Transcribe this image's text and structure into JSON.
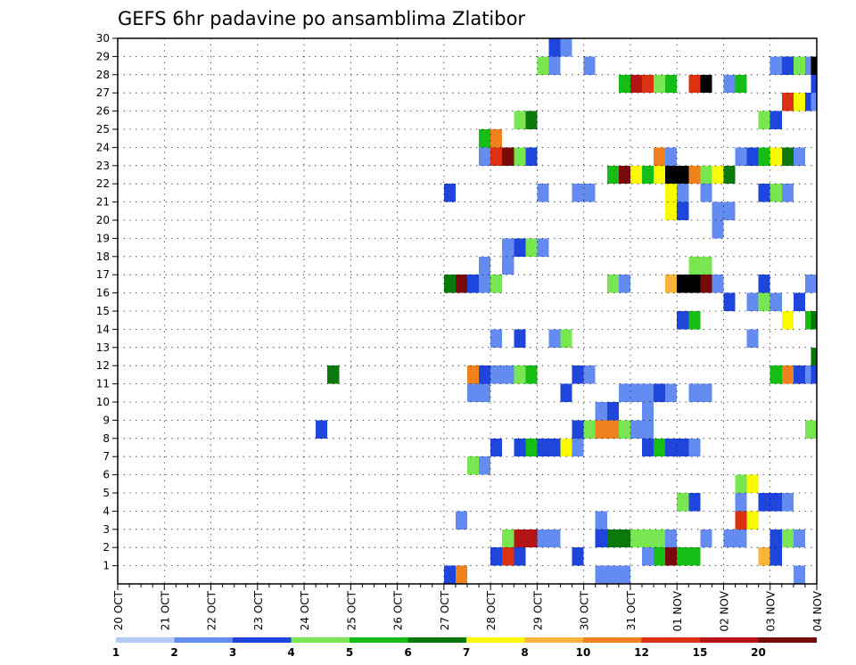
{
  "chart_data": {
    "type": "heatmap",
    "title": "GEFS 6hr padavine po ansamblima Zlatibor",
    "x_labels": [
      "20 OCT",
      "21 OCT",
      "22 OCT",
      "23 OCT",
      "24 OCT",
      "25 OCT",
      "26 OCT",
      "27 OCT",
      "28 OCT",
      "29 OCT",
      "30 OCT",
      "31 OCT",
      "01 NOV",
      "02 NOV",
      "03 NOV",
      "04 NOV"
    ],
    "y_labels": [
      "1",
      "2",
      "3",
      "4",
      "5",
      "6",
      "7",
      "8",
      "9",
      "10",
      "11",
      "12",
      "13",
      "14",
      "15",
      "16",
      "17",
      "18",
      "19",
      "20",
      "21",
      "22",
      "23",
      "24",
      "25",
      "26",
      "27",
      "28",
      "29",
      "30"
    ],
    "x_step_hours": 6,
    "steps_per_day": 4,
    "member_range": [
      0,
      30
    ],
    "grid": "dotted",
    "legend": {
      "position": "bottom",
      "labels": [
        "1",
        "2",
        "3",
        "4",
        "5",
        "6",
        "7",
        "8",
        "10",
        "12",
        "15",
        "20"
      ],
      "colors": [
        "#b4c8f5",
        "#648cf0",
        "#1e46dc",
        "#78e650",
        "#14be14",
        "#0a780a",
        "#fafa00",
        "#fab43c",
        "#f0821e",
        "#dc3214",
        "#b41414",
        "#780a0a"
      ]
    },
    "cells": [
      {
        "member": 0,
        "step": 28.5,
        "bin": 2
      },
      {
        "member": 0,
        "step": 29.5,
        "bin": 8
      },
      {
        "member": 0,
        "step": 41.5,
        "bin": 1
      },
      {
        "member": 0,
        "step": 42.5,
        "bin": 1
      },
      {
        "member": 0,
        "step": 43.5,
        "bin": 1
      },
      {
        "member": 0,
        "step": 58.5,
        "bin": 1
      },
      {
        "member": 1,
        "step": 32.5,
        "bin": 2
      },
      {
        "member": 1,
        "step": 33.5,
        "bin": 9
      },
      {
        "member": 1,
        "step": 34.5,
        "bin": 2
      },
      {
        "member": 1,
        "step": 39.5,
        "bin": 2
      },
      {
        "member": 1,
        "step": 45.5,
        "bin": 1
      },
      {
        "member": 1,
        "step": 46.5,
        "bin": 4
      },
      {
        "member": 1,
        "step": 47.5,
        "bin": 11
      },
      {
        "member": 1,
        "step": 48.5,
        "bin": 4
      },
      {
        "member": 1,
        "step": 49.5,
        "bin": 4
      },
      {
        "member": 1,
        "step": 55.5,
        "bin": 7
      },
      {
        "member": 1,
        "step": 56.5,
        "bin": 2
      },
      {
        "member": 2,
        "step": 33.5,
        "bin": 3
      },
      {
        "member": 2,
        "step": 34.5,
        "bin": 10
      },
      {
        "member": 2,
        "step": 35.5,
        "bin": 10
      },
      {
        "member": 2,
        "step": 36.5,
        "bin": 1
      },
      {
        "member": 2,
        "step": 37.5,
        "bin": 1
      },
      {
        "member": 2,
        "step": 41.5,
        "bin": 2
      },
      {
        "member": 2,
        "step": 42.5,
        "bin": 5
      },
      {
        "member": 2,
        "step": 43.5,
        "bin": 5
      },
      {
        "member": 2,
        "step": 44.5,
        "bin": 3
      },
      {
        "member": 2,
        "step": 45.5,
        "bin": 3
      },
      {
        "member": 2,
        "step": 46.5,
        "bin": 3
      },
      {
        "member": 2,
        "step": 47.5,
        "bin": 1
      },
      {
        "member": 2,
        "step": 50.5,
        "bin": 1
      },
      {
        "member": 2,
        "step": 52.5,
        "bin": 1
      },
      {
        "member": 2,
        "step": 53.5,
        "bin": 1
      },
      {
        "member": 2,
        "step": 56.5,
        "bin": 2
      },
      {
        "member": 2,
        "step": 57.5,
        "bin": 3
      },
      {
        "member": 2,
        "step": 58.5,
        "bin": 1
      },
      {
        "member": 3,
        "step": 29.5,
        "bin": 1
      },
      {
        "member": 3,
        "step": 41.5,
        "bin": 1
      },
      {
        "member": 3,
        "step": 53.5,
        "bin": 9
      },
      {
        "member": 3,
        "step": 54.5,
        "bin": 6
      },
      {
        "member": 4,
        "step": 48.5,
        "bin": 3
      },
      {
        "member": 4,
        "step": 49.5,
        "bin": 2
      },
      {
        "member": 4,
        "step": 53.5,
        "bin": 1
      },
      {
        "member": 4,
        "step": 55.5,
        "bin": 2
      },
      {
        "member": 4,
        "step": 56.5,
        "bin": 2
      },
      {
        "member": 4,
        "step": 57.5,
        "bin": 1
      },
      {
        "member": 5,
        "step": 53.5,
        "bin": 3
      },
      {
        "member": 5,
        "step": 54.5,
        "bin": 6
      },
      {
        "member": 6,
        "step": 30.5,
        "bin": 3
      },
      {
        "member": 6,
        "step": 31.5,
        "bin": 1
      },
      {
        "member": 7,
        "step": 32.5,
        "bin": 2
      },
      {
        "member": 7,
        "step": 34.5,
        "bin": 2
      },
      {
        "member": 7,
        "step": 35.5,
        "bin": 4
      },
      {
        "member": 7,
        "step": 36.5,
        "bin": 2
      },
      {
        "member": 7,
        "step": 37.5,
        "bin": 2
      },
      {
        "member": 7,
        "step": 38.5,
        "bin": 6
      },
      {
        "member": 7,
        "step": 39.5,
        "bin": 1
      },
      {
        "member": 7,
        "step": 45.5,
        "bin": 2
      },
      {
        "member": 7,
        "step": 46.5,
        "bin": 4
      },
      {
        "member": 7,
        "step": 47.5,
        "bin": 2
      },
      {
        "member": 7,
        "step": 48.5,
        "bin": 2
      },
      {
        "member": 7,
        "step": 49.5,
        "bin": 1
      },
      {
        "member": 8,
        "step": 17.5,
        "bin": 2
      },
      {
        "member": 8,
        "step": 39.5,
        "bin": 2
      },
      {
        "member": 8,
        "step": 40.5,
        "bin": 3
      },
      {
        "member": 8,
        "step": 41.5,
        "bin": 8
      },
      {
        "member": 8,
        "step": 42.5,
        "bin": 8
      },
      {
        "member": 8,
        "step": 43.5,
        "bin": 3
      },
      {
        "member": 8,
        "step": 44.5,
        "bin": 1
      },
      {
        "member": 8,
        "step": 45.5,
        "bin": 1
      },
      {
        "member": 8,
        "step": 59.5,
        "bin": 3
      },
      {
        "member": 9,
        "step": 41.5,
        "bin": 1
      },
      {
        "member": 9,
        "step": 42.5,
        "bin": 2
      },
      {
        "member": 9,
        "step": 45.5,
        "bin": 1
      },
      {
        "member": 10,
        "step": 30.5,
        "bin": 1
      },
      {
        "member": 10,
        "step": 31.5,
        "bin": 1
      },
      {
        "member": 10,
        "step": 38.5,
        "bin": 2
      },
      {
        "member": 10,
        "step": 43.5,
        "bin": 1
      },
      {
        "member": 10,
        "step": 44.5,
        "bin": 1
      },
      {
        "member": 10,
        "step": 45.5,
        "bin": 1
      },
      {
        "member": 10,
        "step": 46.5,
        "bin": 2
      },
      {
        "member": 10,
        "step": 47.5,
        "bin": 1
      },
      {
        "member": 10,
        "step": 49.5,
        "bin": 1
      },
      {
        "member": 10,
        "step": 50.5,
        "bin": 1
      },
      {
        "member": 11,
        "step": 18.5,
        "bin": 5
      },
      {
        "member": 11,
        "step": 30.5,
        "bin": 8
      },
      {
        "member": 11,
        "step": 31.5,
        "bin": 2
      },
      {
        "member": 11,
        "step": 32.5,
        "bin": 1
      },
      {
        "member": 11,
        "step": 33.5,
        "bin": 1
      },
      {
        "member": 11,
        "step": 34.5,
        "bin": 3
      },
      {
        "member": 11,
        "step": 35.5,
        "bin": 4
      },
      {
        "member": 11,
        "step": 39.5,
        "bin": 2
      },
      {
        "member": 11,
        "step": 40.5,
        "bin": 1
      },
      {
        "member": 11,
        "step": 56.5,
        "bin": 4
      },
      {
        "member": 11,
        "step": 57.5,
        "bin": 8
      },
      {
        "member": 11,
        "step": 58.5,
        "bin": 2
      },
      {
        "member": 11,
        "step": 59.5,
        "bin": 1
      },
      {
        "member": 11,
        "step": 60.0,
        "bin": 2
      },
      {
        "member": 12,
        "step": 60.0,
        "bin": 5
      },
      {
        "member": 13,
        "step": 32.5,
        "bin": 1
      },
      {
        "member": 13,
        "step": 34.5,
        "bin": 2
      },
      {
        "member": 13,
        "step": 37.5,
        "bin": 1
      },
      {
        "member": 13,
        "step": 38.5,
        "bin": 3
      },
      {
        "member": 13,
        "step": 54.5,
        "bin": 1
      },
      {
        "member": 14,
        "step": 48.5,
        "bin": 2
      },
      {
        "member": 14,
        "step": 49.5,
        "bin": 4
      },
      {
        "member": 14,
        "step": 57.5,
        "bin": 6
      },
      {
        "member": 14,
        "step": 59.5,
        "bin": 4
      },
      {
        "member": 14,
        "step": 60.0,
        "bin": 5
      },
      {
        "member": 15,
        "step": 52.5,
        "bin": 2
      },
      {
        "member": 15,
        "step": 54.5,
        "bin": 1
      },
      {
        "member": 15,
        "step": 55.5,
        "bin": 3
      },
      {
        "member": 15,
        "step": 56.5,
        "bin": 1
      },
      {
        "member": 15,
        "step": 58.5,
        "bin": 2
      },
      {
        "member": 16,
        "step": 28.5,
        "bin": 5
      },
      {
        "member": 16,
        "step": 29.5,
        "bin": 11
      },
      {
        "member": 16,
        "step": 30.5,
        "bin": 2
      },
      {
        "member": 16,
        "step": 31.5,
        "bin": 1
      },
      {
        "member": 16,
        "step": 32.5,
        "bin": 3
      },
      {
        "member": 16,
        "step": 42.5,
        "bin": 3
      },
      {
        "member": 16,
        "step": 43.5,
        "bin": 1
      },
      {
        "member": 16,
        "step": 47.5,
        "bin": 7
      },
      {
        "member": 16,
        "step": 48.5,
        "bin": 12
      },
      {
        "member": 16,
        "step": 49.5,
        "bin": 12
      },
      {
        "member": 16,
        "step": 50.5,
        "bin": 11
      },
      {
        "member": 16,
        "step": 51.5,
        "bin": 1
      },
      {
        "member": 16,
        "step": 55.5,
        "bin": 2
      },
      {
        "member": 16,
        "step": 59.5,
        "bin": 1
      },
      {
        "member": 17,
        "step": 31.5,
        "bin": 1
      },
      {
        "member": 17,
        "step": 33.5,
        "bin": 1
      },
      {
        "member": 17,
        "step": 49.5,
        "bin": 3
      },
      {
        "member": 17,
        "step": 50.5,
        "bin": 3
      },
      {
        "member": 18,
        "step": 33.5,
        "bin": 1
      },
      {
        "member": 18,
        "step": 34.5,
        "bin": 2
      },
      {
        "member": 18,
        "step": 35.5,
        "bin": 3
      },
      {
        "member": 18,
        "step": 36.5,
        "bin": 1
      },
      {
        "member": 19,
        "step": 51.5,
        "bin": 1
      },
      {
        "member": 20,
        "step": 47.5,
        "bin": 6
      },
      {
        "member": 20,
        "step": 48.5,
        "bin": 2
      },
      {
        "member": 20,
        "step": 51.5,
        "bin": 1
      },
      {
        "member": 20,
        "step": 52.5,
        "bin": 1
      },
      {
        "member": 21,
        "step": 28.5,
        "bin": 2
      },
      {
        "member": 21,
        "step": 36.5,
        "bin": 1
      },
      {
        "member": 21,
        "step": 39.5,
        "bin": 1
      },
      {
        "member": 21,
        "step": 40.5,
        "bin": 1
      },
      {
        "member": 21,
        "step": 47.5,
        "bin": 6
      },
      {
        "member": 21,
        "step": 48.5,
        "bin": 1
      },
      {
        "member": 21,
        "step": 50.5,
        "bin": 1
      },
      {
        "member": 21,
        "step": 55.5,
        "bin": 2
      },
      {
        "member": 21,
        "step": 56.5,
        "bin": 3
      },
      {
        "member": 21,
        "step": 57.5,
        "bin": 1
      },
      {
        "member": 22,
        "step": 42.5,
        "bin": 4
      },
      {
        "member": 22,
        "step": 43.5,
        "bin": 11
      },
      {
        "member": 22,
        "step": 44.5,
        "bin": 6
      },
      {
        "member": 22,
        "step": 45.5,
        "bin": 4
      },
      {
        "member": 22,
        "step": 46.5,
        "bin": 6
      },
      {
        "member": 22,
        "step": 47.5,
        "bin": 12
      },
      {
        "member": 22,
        "step": 48.5,
        "bin": 12
      },
      {
        "member": 22,
        "step": 49.5,
        "bin": 8
      },
      {
        "member": 22,
        "step": 50.5,
        "bin": 3
      },
      {
        "member": 22,
        "step": 51.5,
        "bin": 6
      },
      {
        "member": 22,
        "step": 52.5,
        "bin": 5
      },
      {
        "member": 23,
        "step": 31.5,
        "bin": 1
      },
      {
        "member": 23,
        "step": 32.5,
        "bin": 9
      },
      {
        "member": 23,
        "step": 33.5,
        "bin": 11
      },
      {
        "member": 23,
        "step": 34.5,
        "bin": 3
      },
      {
        "member": 23,
        "step": 35.5,
        "bin": 2
      },
      {
        "member": 23,
        "step": 46.5,
        "bin": 8
      },
      {
        "member": 23,
        "step": 47.5,
        "bin": 1
      },
      {
        "member": 23,
        "step": 53.5,
        "bin": 1
      },
      {
        "member": 23,
        "step": 54.5,
        "bin": 2
      },
      {
        "member": 23,
        "step": 55.5,
        "bin": 4
      },
      {
        "member": 23,
        "step": 56.5,
        "bin": 6
      },
      {
        "member": 23,
        "step": 57.5,
        "bin": 5
      },
      {
        "member": 23,
        "step": 58.5,
        "bin": 1
      },
      {
        "member": 24,
        "step": 31.5,
        "bin": 4
      },
      {
        "member": 24,
        "step": 32.5,
        "bin": 8
      },
      {
        "member": 25,
        "step": 34.5,
        "bin": 3
      },
      {
        "member": 25,
        "step": 35.5,
        "bin": 5
      },
      {
        "member": 25,
        "step": 55.5,
        "bin": 3
      },
      {
        "member": 25,
        "step": 56.5,
        "bin": 2
      },
      {
        "member": 26,
        "step": 57.5,
        "bin": 9
      },
      {
        "member": 26,
        "step": 58.5,
        "bin": 6
      },
      {
        "member": 26,
        "step": 59.5,
        "bin": 2
      },
      {
        "member": 26,
        "step": 60.0,
        "bin": 1
      },
      {
        "member": 27,
        "step": 43.5,
        "bin": 4
      },
      {
        "member": 27,
        "step": 44.5,
        "bin": 10
      },
      {
        "member": 27,
        "step": 45.5,
        "bin": 9
      },
      {
        "member": 27,
        "step": 46.5,
        "bin": 3
      },
      {
        "member": 27,
        "step": 47.5,
        "bin": 4
      },
      {
        "member": 27,
        "step": 49.5,
        "bin": 9
      },
      {
        "member": 27,
        "step": 50.5,
        "bin": 12
      },
      {
        "member": 27,
        "step": 52.5,
        "bin": 1
      },
      {
        "member": 27,
        "step": 53.5,
        "bin": 4
      },
      {
        "member": 27,
        "step": 60.0,
        "bin": 2
      },
      {
        "member": 28,
        "step": 36.5,
        "bin": 3
      },
      {
        "member": 28,
        "step": 37.5,
        "bin": 1
      },
      {
        "member": 28,
        "step": 40.5,
        "bin": 1
      },
      {
        "member": 28,
        "step": 56.5,
        "bin": 1
      },
      {
        "member": 28,
        "step": 57.5,
        "bin": 2
      },
      {
        "member": 28,
        "step": 58.5,
        "bin": 3
      },
      {
        "member": 28,
        "step": 59.5,
        "bin": 1
      },
      {
        "member": 28,
        "step": 60.0,
        "bin": 12
      },
      {
        "member": 29,
        "step": 37.5,
        "bin": 2
      },
      {
        "member": 29,
        "step": 38.5,
        "bin": 1
      }
    ]
  }
}
